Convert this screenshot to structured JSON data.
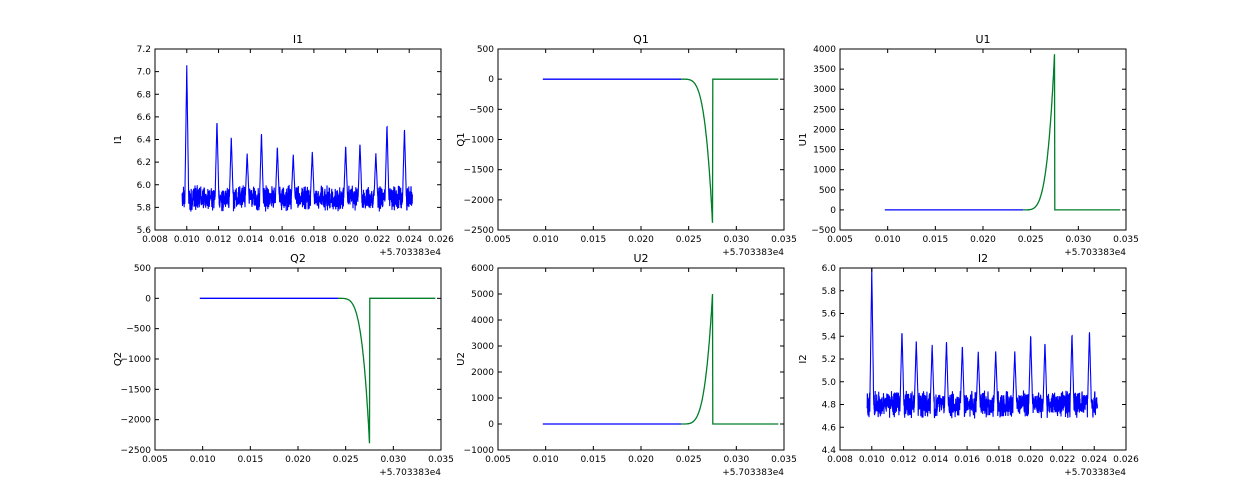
{
  "colors": {
    "blue": "#0000ff",
    "green": "#007f2a"
  },
  "chart_data": [
    {
      "id": "I1",
      "type": "line",
      "title": "I1",
      "ylabel": "I1",
      "xlabel": "",
      "x_offset_label": "+5.703383e4",
      "xlim": [
        0.008,
        0.026
      ],
      "ylim": [
        5.6,
        7.2
      ],
      "xticks": [
        "0.008",
        "0.010",
        "0.012",
        "0.014",
        "0.016",
        "0.018",
        "0.020",
        "0.022",
        "0.024",
        "0.026"
      ],
      "yticks": [
        "5.6",
        "5.8",
        "6.0",
        "6.2",
        "6.4",
        "6.6",
        "6.8",
        "7.0",
        "7.2"
      ],
      "series": [
        {
          "color": "blue",
          "style": "noise",
          "x_range": [
            0.0097,
            0.0242
          ],
          "baseline": 5.88,
          "noise_band": [
            5.72,
            6.06
          ],
          "peaks": [
            [
              0.01,
              7.06
            ],
            [
              0.0119,
              6.57
            ],
            [
              0.0128,
              6.43
            ],
            [
              0.0138,
              6.28
            ],
            [
              0.0147,
              6.46
            ],
            [
              0.0157,
              6.34
            ],
            [
              0.0167,
              6.27
            ],
            [
              0.0179,
              6.3
            ],
            [
              0.02,
              6.35
            ],
            [
              0.0209,
              6.37
            ],
            [
              0.0219,
              6.28
            ],
            [
              0.0226,
              6.54
            ],
            [
              0.0237,
              6.5
            ]
          ]
        }
      ]
    },
    {
      "id": "Q1",
      "type": "line",
      "title": "Q1",
      "ylabel": "Q1",
      "xlabel": "",
      "x_offset_label": "+5.703383e4",
      "xlim": [
        0.005,
        0.035
      ],
      "ylim": [
        -2500,
        500
      ],
      "xticks": [
        "0.005",
        "0.010",
        "0.015",
        "0.020",
        "0.025",
        "0.030",
        "0.035"
      ],
      "yticks": [
        "−2500",
        "−2000",
        "−1500",
        "−1000",
        "−500",
        "0",
        "500"
      ],
      "series": [
        {
          "color": "blue",
          "style": "flat",
          "points": [
            [
              0.0097,
              0
            ],
            [
              0.0242,
              0
            ]
          ]
        },
        {
          "color": "green",
          "style": "exp",
          "start": [
            0.0242,
            0
          ],
          "peak": [
            0.0275,
            -2380
          ],
          "end": [
            0.0344,
            0
          ]
        }
      ]
    },
    {
      "id": "U1",
      "type": "line",
      "title": "U1",
      "ylabel": "U1",
      "xlabel": "",
      "x_offset_label": "+5.703383e4",
      "xlim": [
        0.005,
        0.035
      ],
      "ylim": [
        -500,
        4000
      ],
      "xticks": [
        "0.005",
        "0.010",
        "0.015",
        "0.020",
        "0.025",
        "0.030",
        "0.035"
      ],
      "yticks": [
        "−500",
        "0",
        "500",
        "1000",
        "1500",
        "2000",
        "2500",
        "3000",
        "3500",
        "4000"
      ],
      "series": [
        {
          "color": "blue",
          "style": "flat",
          "points": [
            [
              0.0097,
              0
            ],
            [
              0.0242,
              0
            ]
          ]
        },
        {
          "color": "green",
          "style": "exp",
          "start": [
            0.0242,
            0
          ],
          "peak": [
            0.0275,
            3870
          ],
          "end": [
            0.0344,
            0
          ]
        }
      ]
    },
    {
      "id": "Q2",
      "type": "line",
      "title": "Q2",
      "ylabel": "Q2",
      "xlabel": "",
      "x_offset_label": "+5.703383e4",
      "xlim": [
        0.005,
        0.035
      ],
      "ylim": [
        -2500,
        500
      ],
      "xticks": [
        "0.005",
        "0.010",
        "0.015",
        "0.020",
        "0.025",
        "0.030",
        "0.035"
      ],
      "yticks": [
        "−2500",
        "−2000",
        "−1500",
        "−1000",
        "−500",
        "0",
        "500"
      ],
      "series": [
        {
          "color": "blue",
          "style": "flat",
          "points": [
            [
              0.0097,
              0
            ],
            [
              0.0242,
              0
            ]
          ]
        },
        {
          "color": "green",
          "style": "exp",
          "start": [
            0.0242,
            0
          ],
          "peak": [
            0.0275,
            -2390
          ],
          "end": [
            0.0344,
            0
          ]
        }
      ]
    },
    {
      "id": "U2",
      "type": "line",
      "title": "U2",
      "ylabel": "U2",
      "xlabel": "",
      "x_offset_label": "+5.703383e4",
      "xlim": [
        0.005,
        0.035
      ],
      "ylim": [
        -1000,
        6000
      ],
      "xticks": [
        "0.005",
        "0.010",
        "0.015",
        "0.020",
        "0.025",
        "0.030",
        "0.035"
      ],
      "yticks": [
        "−1000",
        "0",
        "1000",
        "2000",
        "3000",
        "4000",
        "5000",
        "6000"
      ],
      "series": [
        {
          "color": "blue",
          "style": "flat",
          "points": [
            [
              0.0097,
              0
            ],
            [
              0.0242,
              0
            ]
          ]
        },
        {
          "color": "green",
          "style": "exp",
          "start": [
            0.0242,
            0
          ],
          "peak": [
            0.0275,
            5000
          ],
          "end": [
            0.0344,
            0
          ]
        }
      ]
    },
    {
      "id": "I2",
      "type": "line",
      "title": "I2",
      "ylabel": "I2",
      "xlabel": "",
      "x_offset_label": "+5.703383e4",
      "xlim": [
        0.008,
        0.026
      ],
      "ylim": [
        4.4,
        6.0
      ],
      "xticks": [
        "0.008",
        "0.010",
        "0.012",
        "0.014",
        "0.016",
        "0.018",
        "0.020",
        "0.022",
        "0.024",
        "0.026"
      ],
      "yticks": [
        "4.4",
        "4.6",
        "4.8",
        "5.0",
        "5.2",
        "5.4",
        "5.6",
        "5.8",
        "6.0"
      ],
      "series": [
        {
          "color": "blue",
          "style": "noise",
          "x_range": [
            0.0097,
            0.0242
          ],
          "baseline": 4.8,
          "noise_band": [
            4.62,
            4.98
          ],
          "peaks": [
            [
              0.01,
              6.0
            ],
            [
              0.0119,
              5.45
            ],
            [
              0.0128,
              5.37
            ],
            [
              0.0138,
              5.33
            ],
            [
              0.0147,
              5.36
            ],
            [
              0.0157,
              5.32
            ],
            [
              0.0167,
              5.27
            ],
            [
              0.0178,
              5.27
            ],
            [
              0.019,
              5.27
            ],
            [
              0.02,
              5.42
            ],
            [
              0.0209,
              5.35
            ],
            [
              0.0226,
              5.43
            ],
            [
              0.0237,
              5.45
            ]
          ]
        }
      ]
    }
  ]
}
